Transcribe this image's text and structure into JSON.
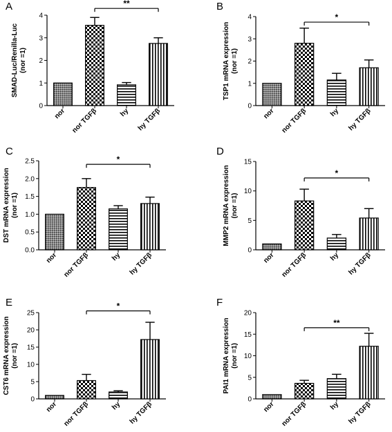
{
  "chart_data": [
    {
      "type": "bar",
      "panel_label": "A",
      "ylabel": [
        "SMAD-Luc/Renilla-Luc",
        "(nor =1)"
      ],
      "categories": [
        "nor",
        "nor TGFβ",
        "hy",
        "hy TGFβ"
      ],
      "values": [
        1.0,
        3.55,
        0.92,
        2.75
      ],
      "errors": [
        0,
        0.35,
        0.1,
        0.25
      ],
      "ylim": [
        0,
        4
      ],
      "yticks": [
        "0",
        "1",
        "2",
        "3",
        "4"
      ],
      "significance": {
        "from": 1,
        "to": 3,
        "label": "**",
        "y": 4.3
      }
    },
    {
      "type": "bar",
      "panel_label": "B",
      "ylabel": [
        "TSP1 mRNA expression",
        "(nor =1)"
      ],
      "categories": [
        "nor",
        "nor TGFβ",
        "hy",
        "hy TGFβ"
      ],
      "values": [
        1.0,
        2.8,
        1.15,
        1.7
      ],
      "errors": [
        0,
        0.68,
        0.3,
        0.35
      ],
      "ylim": [
        0,
        4
      ],
      "yticks": [
        "0",
        "1",
        "2",
        "3",
        "4"
      ],
      "significance": {
        "from": 1,
        "to": 3,
        "label": "*",
        "y": 3.75
      }
    },
    {
      "type": "bar",
      "panel_label": "C",
      "ylabel": [
        "DST mRNA expression",
        "(nor =1)"
      ],
      "categories": [
        "nor",
        "nor TGFβ",
        "hy",
        "hy TGFβ"
      ],
      "values": [
        1.0,
        1.75,
        1.15,
        1.3
      ],
      "errors": [
        0,
        0.25,
        0.09,
        0.18
      ],
      "ylim": [
        0,
        2.5
      ],
      "yticks": [
        "0.0",
        "0.5",
        "1.0",
        "1.5",
        "2.0",
        "2.5"
      ],
      "significance": {
        "from": 1,
        "to": 3,
        "label": "*",
        "y": 2.4
      }
    },
    {
      "type": "bar",
      "panel_label": "D",
      "ylabel": [
        "MMP2 mRNA expression",
        "(nor =1)"
      ],
      "categories": [
        "nor",
        "nor TGFβ",
        "hy",
        "hy TGFβ"
      ],
      "values": [
        1.0,
        8.3,
        2.0,
        5.4
      ],
      "errors": [
        0,
        2.0,
        0.6,
        1.6
      ],
      "ylim": [
        0,
        15
      ],
      "yticks": [
        "0",
        "5",
        "10",
        "15"
      ],
      "significance": {
        "from": 1,
        "to": 3,
        "label": "*",
        "y": 12.2
      }
    },
    {
      "type": "bar",
      "panel_label": "E",
      "ylabel": [
        "CST6 mRNA expression",
        "(nor =1)"
      ],
      "categories": [
        "nor",
        "nor TGFβ",
        "hy",
        "hy TGFβ"
      ],
      "values": [
        1.0,
        5.3,
        2.0,
        17.2
      ],
      "errors": [
        0,
        1.8,
        0.35,
        5.0
      ],
      "ylim": [
        0,
        25
      ],
      "yticks": [
        "0",
        "5",
        "10",
        "15",
        "20",
        "25"
      ],
      "significance": {
        "from": 1,
        "to": 3,
        "label": "*",
        "y": 25.5
      }
    },
    {
      "type": "bar",
      "panel_label": "F",
      "ylabel": [
        "PAI1 mRNA expression",
        "(nor =1)"
      ],
      "categories": [
        "nor",
        "nor TGFβ",
        "hy",
        "hy TGFβ"
      ],
      "values": [
        1.0,
        3.6,
        4.7,
        12.2
      ],
      "errors": [
        0,
        0.7,
        1.0,
        3.0
      ],
      "ylim": [
        0,
        20
      ],
      "yticks": [
        "0",
        "5",
        "10",
        "15",
        "20"
      ],
      "significance": {
        "from": 1,
        "to": 3,
        "label": "**",
        "y": 16.5
      }
    }
  ]
}
